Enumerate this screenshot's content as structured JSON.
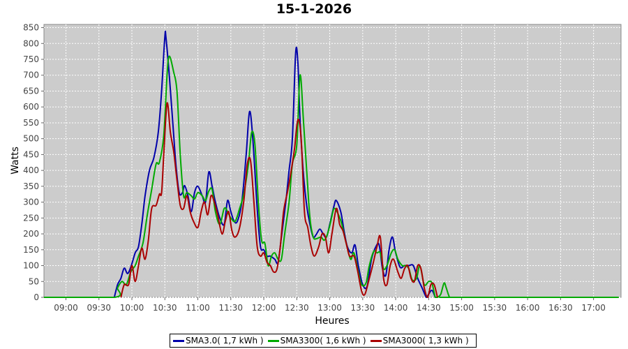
{
  "chart_data": {
    "type": "line",
    "title": "15-1-2026",
    "xlabel": "Heures",
    "ylabel": "Watts",
    "ylim": [
      0,
      860
    ],
    "yticks": [
      0,
      50,
      100,
      150,
      200,
      250,
      300,
      350,
      400,
      450,
      500,
      550,
      600,
      650,
      700,
      750,
      800,
      850
    ],
    "xlim": [
      "08:40",
      "17:25"
    ],
    "xticks": [
      "09:00",
      "09:30",
      "10:00",
      "10:30",
      "11:00",
      "11:30",
      "12:00",
      "12:30",
      "13:00",
      "13:30",
      "14:00",
      "14:30",
      "15:00",
      "15:30",
      "16:00",
      "16:30",
      "17:00"
    ],
    "grid": true,
    "legend_position": "bottom",
    "series": [
      {
        "name": "SMA3.0( 1,7 kWh )",
        "color": "#0000aa",
        "points": [
          [
            "09:44",
            0
          ],
          [
            "09:47",
            40
          ],
          [
            "09:50",
            60
          ],
          [
            "09:53",
            92
          ],
          [
            "09:56",
            75
          ],
          [
            "09:59",
            95
          ],
          [
            "10:03",
            140
          ],
          [
            "10:06",
            160
          ],
          [
            "10:09",
            230
          ],
          [
            "10:12",
            320
          ],
          [
            "10:16",
            400
          ],
          [
            "10:20",
            440
          ],
          [
            "10:24",
            520
          ],
          [
            "10:27",
            650
          ],
          [
            "10:30",
            822
          ],
          [
            "10:31",
            818
          ],
          [
            "10:34",
            700
          ],
          [
            "10:37",
            560
          ],
          [
            "10:40",
            420
          ],
          [
            "10:43",
            330
          ],
          [
            "10:46",
            330
          ],
          [
            "10:48",
            352
          ],
          [
            "10:51",
            320
          ],
          [
            "10:54",
            270
          ],
          [
            "10:57",
            330
          ],
          [
            "11:00",
            350
          ],
          [
            "11:04",
            320
          ],
          [
            "11:07",
            300
          ],
          [
            "11:10",
            395
          ],
          [
            "11:13",
            350
          ],
          [
            "11:16",
            300
          ],
          [
            "11:20",
            250
          ],
          [
            "11:24",
            230
          ],
          [
            "11:27",
            305
          ],
          [
            "11:30",
            270
          ],
          [
            "11:33",
            240
          ],
          [
            "11:36",
            240
          ],
          [
            "11:40",
            300
          ],
          [
            "11:44",
            450
          ],
          [
            "11:47",
            585
          ],
          [
            "11:50",
            500
          ],
          [
            "11:54",
            280
          ],
          [
            "11:57",
            160
          ],
          [
            "12:00",
            150
          ],
          [
            "12:03",
            130
          ],
          [
            "12:06",
            130
          ],
          [
            "12:10",
            120
          ],
          [
            "12:13",
            110
          ],
          [
            "12:16",
            190
          ],
          [
            "12:20",
            300
          ],
          [
            "12:23",
            400
          ],
          [
            "12:26",
            500
          ],
          [
            "12:29",
            770
          ],
          [
            "12:31",
            740
          ],
          [
            "12:33",
            560
          ],
          [
            "12:36",
            390
          ],
          [
            "12:39",
            290
          ],
          [
            "12:42",
            230
          ],
          [
            "12:45",
            190
          ],
          [
            "12:48",
            200
          ],
          [
            "12:51",
            215
          ],
          [
            "12:54",
            200
          ],
          [
            "12:57",
            190
          ],
          [
            "13:00",
            230
          ],
          [
            "13:04",
            290
          ],
          [
            "13:06",
            305
          ],
          [
            "13:10",
            270
          ],
          [
            "13:13",
            210
          ],
          [
            "13:16",
            160
          ],
          [
            "13:20",
            140
          ],
          [
            "13:23",
            165
          ],
          [
            "13:26",
            100
          ],
          [
            "13:30",
            40
          ],
          [
            "13:34",
            35
          ],
          [
            "13:38",
            120
          ],
          [
            "13:42",
            160
          ],
          [
            "13:45",
            165
          ],
          [
            "13:48",
            90
          ],
          [
            "13:51",
            70
          ],
          [
            "13:54",
            150
          ],
          [
            "13:57",
            190
          ],
          [
            "14:00",
            140
          ],
          [
            "14:04",
            95
          ],
          [
            "14:08",
            100
          ],
          [
            "14:12",
            100
          ],
          [
            "14:16",
            100
          ],
          [
            "14:20",
            60
          ],
          [
            "14:24",
            30
          ],
          [
            "14:28",
            0
          ],
          [
            "14:30",
            10
          ],
          [
            "14:33",
            22
          ],
          [
            "14:36",
            0
          ]
        ]
      },
      {
        "name": "SMA3300( 1,6 kWh )",
        "color": "#00aa00",
        "points": [
          [
            "08:40",
            0
          ],
          [
            "09:44",
            0
          ],
          [
            "09:47",
            30
          ],
          [
            "09:51",
            50
          ],
          [
            "09:55",
            40
          ],
          [
            "09:59",
            80
          ],
          [
            "10:03",
            100
          ],
          [
            "10:06",
            130
          ],
          [
            "10:10",
            170
          ],
          [
            "10:14",
            260
          ],
          [
            "10:18",
            340
          ],
          [
            "10:22",
            420
          ],
          [
            "10:25",
            425
          ],
          [
            "10:29",
            510
          ],
          [
            "10:32",
            700
          ],
          [
            "10:34",
            760
          ],
          [
            "10:38",
            710
          ],
          [
            "10:41",
            650
          ],
          [
            "10:44",
            450
          ],
          [
            "10:47",
            320
          ],
          [
            "10:50",
            330
          ],
          [
            "10:54",
            320
          ],
          [
            "10:57",
            310
          ],
          [
            "11:00",
            330
          ],
          [
            "11:04",
            320
          ],
          [
            "11:07",
            305
          ],
          [
            "11:10",
            335
          ],
          [
            "11:13",
            340
          ],
          [
            "11:16",
            270
          ],
          [
            "11:20",
            230
          ],
          [
            "11:24",
            280
          ],
          [
            "11:27",
            270
          ],
          [
            "11:30",
            250
          ],
          [
            "11:34",
            240
          ],
          [
            "11:38",
            280
          ],
          [
            "11:42",
            330
          ],
          [
            "11:46",
            420
          ],
          [
            "11:49",
            520
          ],
          [
            "11:52",
            480
          ],
          [
            "11:55",
            300
          ],
          [
            "11:58",
            180
          ],
          [
            "12:01",
            170
          ],
          [
            "12:04",
            100
          ],
          [
            "12:07",
            130
          ],
          [
            "12:10",
            140
          ],
          [
            "12:13",
            120
          ],
          [
            "12:16",
            120
          ],
          [
            "12:19",
            200
          ],
          [
            "12:23",
            300
          ],
          [
            "12:26",
            420
          ],
          [
            "12:30",
            480
          ],
          [
            "12:33",
            700
          ],
          [
            "12:36",
            560
          ],
          [
            "12:39",
            400
          ],
          [
            "12:42",
            250
          ],
          [
            "12:45",
            190
          ],
          [
            "12:48",
            185
          ],
          [
            "12:52",
            190
          ],
          [
            "12:55",
            180
          ],
          [
            "12:58",
            200
          ],
          [
            "13:01",
            240
          ],
          [
            "13:04",
            280
          ],
          [
            "13:08",
            260
          ],
          [
            "13:11",
            230
          ],
          [
            "13:15",
            170
          ],
          [
            "13:19",
            120
          ],
          [
            "13:22",
            140
          ],
          [
            "13:26",
            80
          ],
          [
            "13:29",
            40
          ],
          [
            "13:33",
            45
          ],
          [
            "13:36",
            100
          ],
          [
            "13:40",
            145
          ],
          [
            "13:43",
            140
          ],
          [
            "13:46",
            140
          ],
          [
            "13:49",
            90
          ],
          [
            "13:52",
            100
          ],
          [
            "13:56",
            140
          ],
          [
            "13:59",
            150
          ],
          [
            "14:02",
            120
          ],
          [
            "14:06",
            100
          ],
          [
            "14:09",
            100
          ],
          [
            "14:12",
            90
          ],
          [
            "14:15",
            55
          ],
          [
            "14:19",
            60
          ],
          [
            "14:22",
            100
          ],
          [
            "14:26",
            40
          ],
          [
            "14:30",
            50
          ],
          [
            "14:33",
            45
          ],
          [
            "14:36",
            0
          ],
          [
            "14:38",
            0
          ],
          [
            "14:41",
            10
          ],
          [
            "14:44",
            45
          ],
          [
            "14:46",
            30
          ],
          [
            "14:49",
            0
          ],
          [
            "14:52",
            0
          ],
          [
            "17:23",
            0
          ]
        ]
      },
      {
        "name": "SMA3000( 1,3 kWh )",
        "color": "#aa0000",
        "points": [
          [
            "09:50",
            0
          ],
          [
            "09:53",
            40
          ],
          [
            "09:57",
            40
          ],
          [
            "10:00",
            100
          ],
          [
            "10:03",
            50
          ],
          [
            "10:06",
            100
          ],
          [
            "10:09",
            155
          ],
          [
            "10:12",
            120
          ],
          [
            "10:15",
            180
          ],
          [
            "10:18",
            280
          ],
          [
            "10:22",
            290
          ],
          [
            "10:25",
            325
          ],
          [
            "10:27",
            330
          ],
          [
            "10:29",
            450
          ],
          [
            "10:32",
            612
          ],
          [
            "10:35",
            520
          ],
          [
            "10:38",
            460
          ],
          [
            "10:41",
            370
          ],
          [
            "10:44",
            290
          ],
          [
            "10:47",
            280
          ],
          [
            "10:50",
            320
          ],
          [
            "10:53",
            270
          ],
          [
            "10:56",
            240
          ],
          [
            "11:00",
            220
          ],
          [
            "11:03",
            270
          ],
          [
            "11:06",
            300
          ],
          [
            "11:09",
            260
          ],
          [
            "11:12",
            320
          ],
          [
            "11:15",
            300
          ],
          [
            "11:18",
            260
          ],
          [
            "11:22",
            200
          ],
          [
            "11:25",
            240
          ],
          [
            "11:28",
            270
          ],
          [
            "11:31",
            210
          ],
          [
            "11:34",
            190
          ],
          [
            "11:38",
            220
          ],
          [
            "11:42",
            310
          ],
          [
            "11:45",
            420
          ],
          [
            "11:48",
            430
          ],
          [
            "11:51",
            300
          ],
          [
            "11:54",
            160
          ],
          [
            "11:57",
            130
          ],
          [
            "12:00",
            140
          ],
          [
            "12:03",
            110
          ],
          [
            "12:06",
            100
          ],
          [
            "12:09",
            80
          ],
          [
            "12:12",
            90
          ],
          [
            "12:15",
            160
          ],
          [
            "12:18",
            270
          ],
          [
            "12:22",
            340
          ],
          [
            "12:25",
            400
          ],
          [
            "12:28",
            470
          ],
          [
            "12:31",
            560
          ],
          [
            "12:34",
            500
          ],
          [
            "12:37",
            270
          ],
          [
            "12:40",
            220
          ],
          [
            "12:43",
            160
          ],
          [
            "12:46",
            130
          ],
          [
            "12:50",
            160
          ],
          [
            "12:53",
            200
          ],
          [
            "12:56",
            190
          ],
          [
            "12:59",
            140
          ],
          [
            "13:02",
            200
          ],
          [
            "13:06",
            280
          ],
          [
            "13:09",
            230
          ],
          [
            "13:12",
            210
          ],
          [
            "13:15",
            170
          ],
          [
            "13:18",
            130
          ],
          [
            "13:22",
            130
          ],
          [
            "13:25",
            90
          ],
          [
            "13:29",
            20
          ],
          [
            "13:32",
            10
          ],
          [
            "13:36",
            60
          ],
          [
            "13:39",
            100
          ],
          [
            "13:43",
            160
          ],
          [
            "13:46",
            190
          ],
          [
            "13:49",
            60
          ],
          [
            "13:52",
            40
          ],
          [
            "13:55",
            100
          ],
          [
            "13:58",
            120
          ],
          [
            "14:02",
            80
          ],
          [
            "14:05",
            60
          ],
          [
            "14:08",
            90
          ],
          [
            "14:11",
            100
          ],
          [
            "14:14",
            60
          ],
          [
            "14:17",
            50
          ],
          [
            "14:20",
            100
          ],
          [
            "14:23",
            90
          ],
          [
            "14:26",
            30
          ],
          [
            "14:29",
            0
          ],
          [
            "14:32",
            40
          ],
          [
            "14:35",
            40
          ],
          [
            "14:38",
            0
          ]
        ]
      }
    ]
  }
}
